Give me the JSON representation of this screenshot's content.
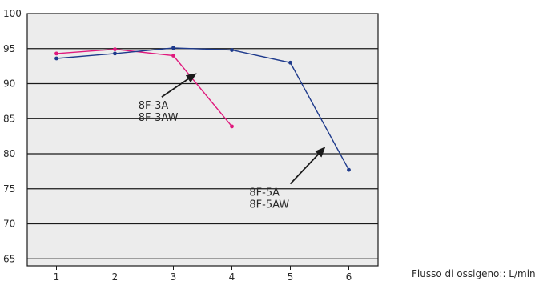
{
  "chart_data": {
    "type": "line",
    "title": "",
    "xlabel": "Flusso di ossigeno:: L/min",
    "ylabel": "",
    "xlim": [
      0.5,
      6.5
    ],
    "ylim": [
      64,
      100
    ],
    "x_ticks": [
      1,
      2,
      3,
      4,
      5,
      6
    ],
    "y_ticks": [
      65,
      70,
      75,
      80,
      85,
      90,
      95,
      100
    ],
    "grid": true,
    "colors": {
      "plot_background": "#ececec",
      "grid": "#1a1a1a",
      "arrow": "#1a1a1a"
    },
    "series": [
      {
        "name": "8F-3A / 8F-3AW",
        "color": "#e0197d",
        "x": [
          1,
          2,
          3,
          4
        ],
        "y": [
          94.3,
          94.9,
          94.0,
          83.9
        ]
      },
      {
        "name": "8F-5A / 8F-5AW",
        "color": "#1e3a8c",
        "x": [
          1,
          2,
          3,
          4,
          5,
          6
        ],
        "y": [
          93.6,
          94.3,
          95.1,
          94.8,
          93.0,
          77.7
        ]
      }
    ],
    "annotations": [
      {
        "lines": [
          "8F-3A",
          "8F-3AW"
        ],
        "series": 0,
        "text_at": [
          2.4,
          86.4
        ],
        "arrow_from": [
          2.8,
          88.1
        ],
        "arrow_to": [
          3.4,
          91.5
        ]
      },
      {
        "lines": [
          "8F-5A",
          "8F-5AW"
        ],
        "series": 1,
        "text_at": [
          4.3,
          74.0
        ],
        "arrow_from": [
          5.0,
          75.7
        ],
        "arrow_to": [
          5.6,
          81.0
        ]
      }
    ]
  }
}
